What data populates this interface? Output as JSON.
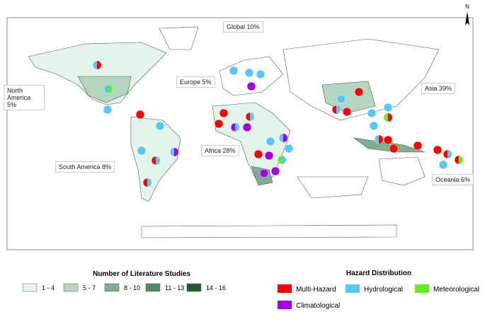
{
  "header": {
    "north": "N"
  },
  "regions": [
    {
      "label": "Global 10%"
    },
    {
      "label": "Europe 5%"
    },
    {
      "label": "North America 5%"
    },
    {
      "label": "Asia 39%"
    },
    {
      "label": "Africa 28%"
    },
    {
      "label": "South America 8%"
    },
    {
      "label": "Oceania 6%"
    }
  ],
  "studies_legend": {
    "title": "Number of Literature Studies",
    "classes": [
      {
        "label": "1 - 4",
        "color": "#e3f4ea"
      },
      {
        "label": "5 - 7",
        "color": "#b3d6c0"
      },
      {
        "label": "8 - 10",
        "color": "#7fae8e"
      },
      {
        "label": "11 - 13",
        "color": "#4f8a62"
      },
      {
        "label": "14 - 16",
        "color": "#1e5c30"
      }
    ]
  },
  "hazard_legend": {
    "title": "Hazard Distribution",
    "items": [
      {
        "label": "Multi-Hazard",
        "color": "#ff0000"
      },
      {
        "label": "Hydrological",
        "color": "#55c8f5"
      },
      {
        "label": "Meteorological",
        "color": "#66ee22"
      },
      {
        "label": "Climatological",
        "color": "#a400e8"
      }
    ]
  }
}
